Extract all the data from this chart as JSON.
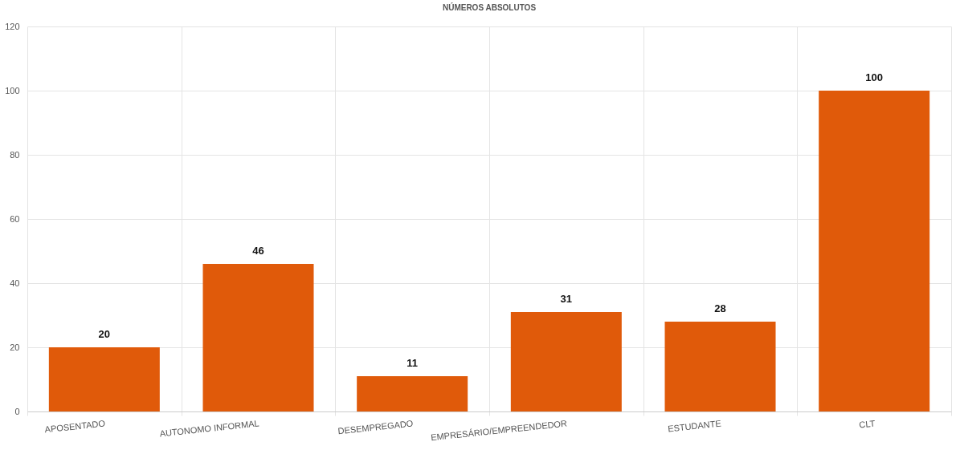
{
  "chart_data": {
    "type": "bar",
    "title": "NÚMEROS ABSOLUTOS",
    "categories": [
      "APOSENTADO",
      "AUTONOMO INFORMAL",
      "DESEMPREGADO",
      "EMPRESÁRIO/EMPREENDEDOR",
      "ESTUDANTE",
      "CLT"
    ],
    "values": [
      20,
      46,
      11,
      31,
      28,
      100
    ],
    "color": "#e05a0a",
    "ylim": [
      0,
      120
    ],
    "yticks": [
      0,
      20,
      40,
      60,
      80,
      100,
      120
    ],
    "grid": true,
    "data_labels": true
  }
}
